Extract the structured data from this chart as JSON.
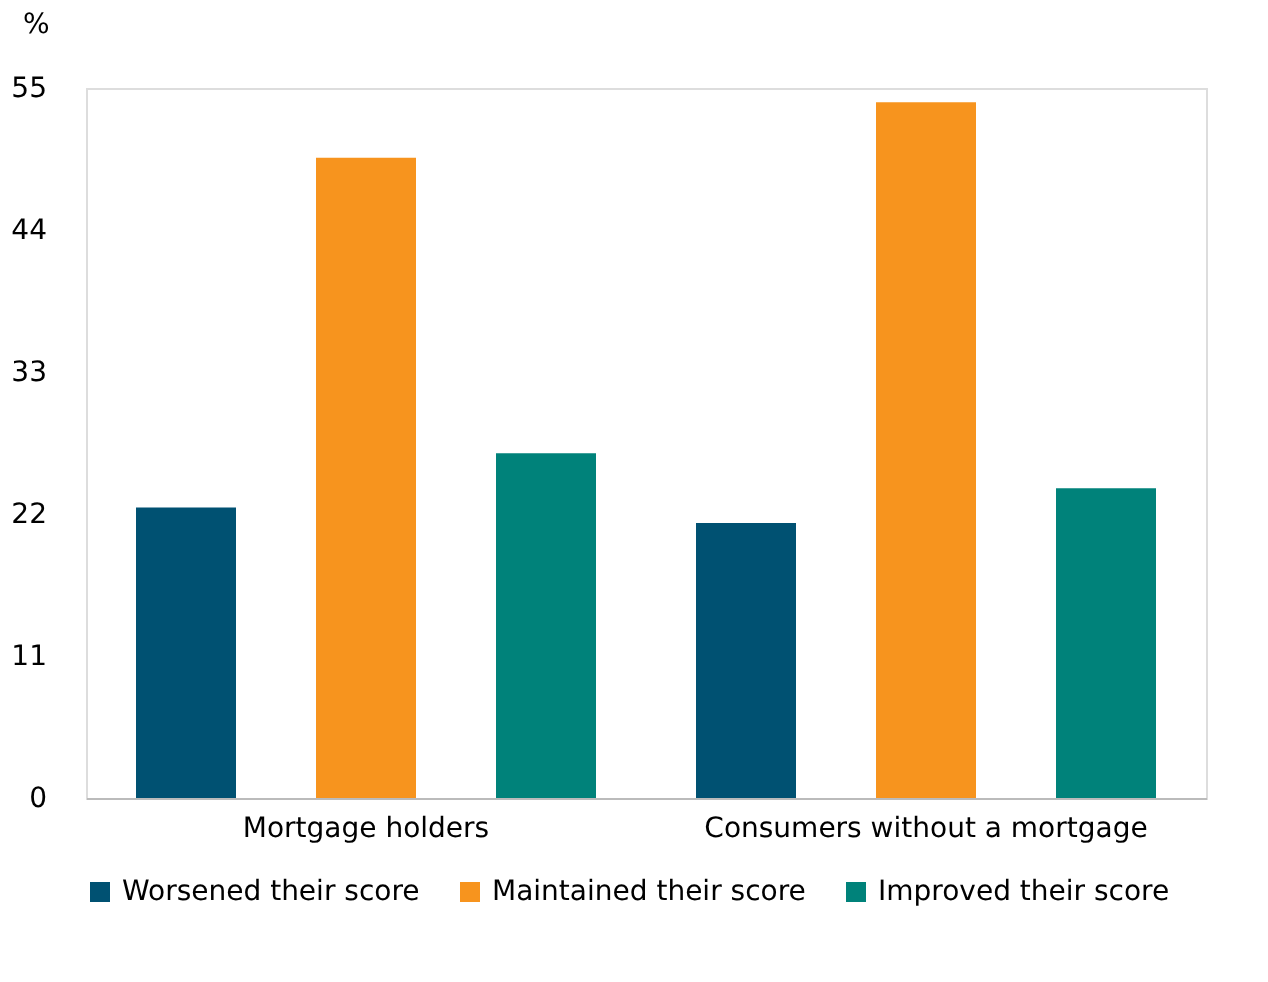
{
  "chart_data": {
    "type": "bar",
    "ylabel": "%",
    "categories": [
      "Mortgage holders",
      "Consumers without a mortgage"
    ],
    "series": [
      {
        "name": "Worsened their score",
        "color": "#005172",
        "values": [
          22.5,
          21.3
        ]
      },
      {
        "name": "Maintained their score",
        "color": "#f7941e",
        "values": [
          49.6,
          53.9
        ]
      },
      {
        "name": "Improved their score",
        "color": "#00827a",
        "values": [
          26.7,
          24.0
        ]
      }
    ],
    "ylim": [
      0,
      55
    ],
    "yticks": [
      0,
      11,
      22,
      33,
      44,
      55
    ],
    "grid": false,
    "legend": "bottom"
  }
}
